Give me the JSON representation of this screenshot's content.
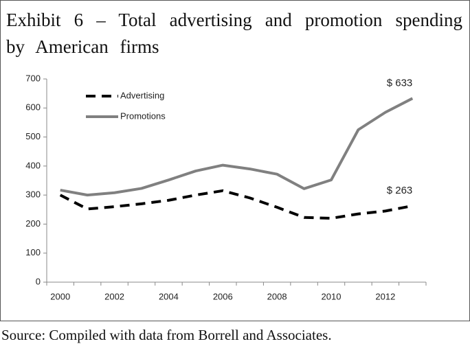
{
  "chart_data": {
    "type": "line",
    "title": "Exhibit 6 – Total advertising and promotion spending by American firms",
    "source": "Source: Compiled with data from Borrell and Associates.",
    "categories": [
      "2000",
      null,
      "2002",
      null,
      "2004",
      null,
      "2006",
      null,
      "2008",
      null,
      "2010",
      null,
      "2012",
      null
    ],
    "series": [
      {
        "name": "Advertising",
        "color": "#000000",
        "dashed": true,
        "values": [
          300,
          252,
          260,
          270,
          282,
          300,
          315,
          290,
          258,
          223,
          220,
          235,
          245,
          263
        ],
        "value_labels": [
          null,
          null,
          null,
          null,
          null,
          null,
          null,
          null,
          null,
          null,
          null,
          null,
          null,
          "$ 263"
        ]
      },
      {
        "name": "Promotions",
        "color": "#808080",
        "dashed": false,
        "values": [
          317,
          300,
          308,
          323,
          352,
          383,
          403,
          390,
          372,
          322,
          352,
          525,
          585,
          633
        ],
        "value_labels": [
          null,
          null,
          null,
          null,
          null,
          null,
          null,
          null,
          null,
          null,
          null,
          null,
          null,
          "$ 633"
        ]
      }
    ],
    "ylim": [
      0,
      700
    ],
    "yticks": [
      0,
      100,
      200,
      300,
      400,
      500,
      600,
      700
    ],
    "grid": false,
    "legend": "upper left"
  }
}
